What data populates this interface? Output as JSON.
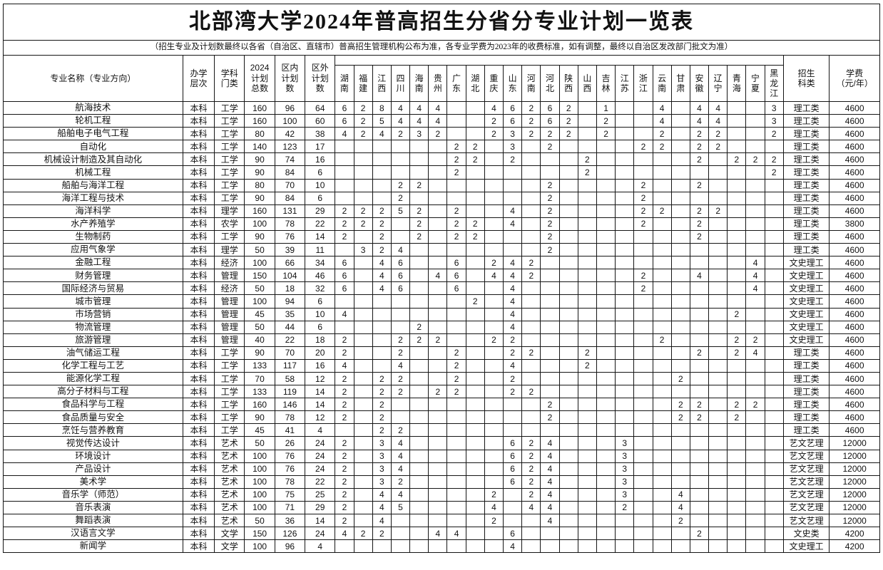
{
  "title": "北部湾大学2024年普高招生分省分专业计划一览表",
  "note": "（招生专业及计划数最终以各省（自治区、直辖市）普高招生管理机构公布为准，各专业学费为2023年的收费标准，如有调整，最终以自治区发改部门批文为准）",
  "columns": {
    "major": "专业名称（专业方向）",
    "level": "办学\n层次",
    "discipline": "学科\n门类",
    "total": "2024\n计划\n总数",
    "inside": "区内\n计划\n数",
    "outside": "区外\n计划\n数",
    "category": "招生\n科类",
    "fee": "学费\n（元/年）"
  },
  "provinces": [
    "湖南",
    "福建",
    "江西",
    "四川",
    "海南",
    "贵州",
    "广东",
    "湖北",
    "重庆",
    "山东",
    "河南",
    "河北",
    "陕西",
    "山西",
    "吉林",
    "江苏",
    "浙江",
    "云南",
    "甘肃",
    "安徽",
    "辽宁",
    "青海",
    "宁夏",
    "黑龙江"
  ],
  "rows": [
    {
      "name": "航海技术",
      "level": "本科",
      "discipline": "工学",
      "total": 160,
      "inside": 96,
      "outside": 64,
      "prov": [
        6,
        2,
        8,
        4,
        4,
        4,
        "",
        "",
        4,
        6,
        2,
        6,
        2,
        "",
        1,
        "",
        "",
        4,
        "",
        4,
        4,
        "",
        "",
        3
      ],
      "category": "理工类",
      "fee": 4600
    },
    {
      "name": "轮机工程",
      "level": "本科",
      "discipline": "工学",
      "total": 160,
      "inside": 100,
      "outside": 60,
      "prov": [
        6,
        2,
        5,
        4,
        4,
        4,
        "",
        "",
        2,
        6,
        2,
        6,
        2,
        "",
        2,
        "",
        "",
        4,
        "",
        4,
        4,
        "",
        "",
        3
      ],
      "category": "理工类",
      "fee": 4600
    },
    {
      "name": "船舶电子电气工程",
      "level": "本科",
      "discipline": "工学",
      "total": 80,
      "inside": 42,
      "outside": 38,
      "prov": [
        4,
        2,
        4,
        2,
        3,
        2,
        "",
        "",
        2,
        3,
        2,
        2,
        2,
        "",
        2,
        "",
        "",
        2,
        "",
        2,
        2,
        "",
        "",
        2
      ],
      "category": "理工类",
      "fee": 4600
    },
    {
      "name": "自动化",
      "level": "本科",
      "discipline": "工学",
      "total": 140,
      "inside": 123,
      "outside": 17,
      "prov": [
        "",
        "",
        "",
        "",
        "",
        "",
        2,
        2,
        "",
        3,
        "",
        2,
        "",
        "",
        "",
        "",
        2,
        2,
        "",
        2,
        2,
        "",
        "",
        ""
      ],
      "category": "理工类",
      "fee": 4600
    },
    {
      "name": "机械设计制造及其自动化",
      "level": "本科",
      "discipline": "工学",
      "total": 90,
      "inside": 74,
      "outside": 16,
      "prov": [
        "",
        "",
        "",
        "",
        "",
        "",
        2,
        2,
        "",
        2,
        "",
        "",
        "",
        2,
        "",
        "",
        "",
        "",
        "",
        2,
        "",
        2,
        2,
        2
      ],
      "category": "理工类",
      "fee": 4600
    },
    {
      "name": "机械工程",
      "level": "本科",
      "discipline": "工学",
      "total": 90,
      "inside": 84,
      "outside": 6,
      "prov": [
        "",
        "",
        "",
        "",
        "",
        "",
        2,
        "",
        "",
        "",
        "",
        "",
        "",
        2,
        "",
        "",
        "",
        "",
        "",
        "",
        "",
        "",
        "",
        2
      ],
      "category": "理工类",
      "fee": 4600
    },
    {
      "name": "船舶与海洋工程",
      "level": "本科",
      "discipline": "工学",
      "total": 80,
      "inside": 70,
      "outside": 10,
      "prov": [
        "",
        "",
        "",
        2,
        2,
        "",
        "",
        "",
        "",
        "",
        "",
        2,
        "",
        "",
        "",
        "",
        2,
        "",
        "",
        2,
        "",
        "",
        "",
        ""
      ],
      "category": "理工类",
      "fee": 4600
    },
    {
      "name": "海洋工程与技术",
      "level": "本科",
      "discipline": "工学",
      "total": 90,
      "inside": 84,
      "outside": 6,
      "prov": [
        "",
        "",
        "",
        2,
        "",
        "",
        "",
        "",
        "",
        "",
        "",
        2,
        "",
        "",
        "",
        "",
        2,
        "",
        "",
        "",
        "",
        "",
        "",
        ""
      ],
      "category": "理工类",
      "fee": 4600
    },
    {
      "name": "海洋科学",
      "level": "本科",
      "discipline": "理学",
      "total": 160,
      "inside": 131,
      "outside": 29,
      "prov": [
        2,
        2,
        2,
        5,
        2,
        "",
        2,
        "",
        "",
        4,
        "",
        2,
        "",
        "",
        "",
        "",
        2,
        2,
        "",
        2,
        2,
        "",
        "",
        ""
      ],
      "category": "理工类",
      "fee": 4600
    },
    {
      "name": "水产养殖学",
      "level": "本科",
      "discipline": "农学",
      "total": 100,
      "inside": 78,
      "outside": 22,
      "prov": [
        2,
        2,
        2,
        "",
        2,
        "",
        2,
        2,
        "",
        4,
        "",
        2,
        "",
        "",
        "",
        "",
        2,
        "",
        "",
        2,
        "",
        "",
        "",
        ""
      ],
      "category": "理工类",
      "fee": 3800
    },
    {
      "name": "生物制药",
      "level": "本科",
      "discipline": "工学",
      "total": 90,
      "inside": 76,
      "outside": 14,
      "prov": [
        2,
        "",
        2,
        "",
        2,
        "",
        2,
        2,
        "",
        "",
        "",
        2,
        "",
        "",
        "",
        "",
        "",
        "",
        "",
        2,
        "",
        "",
        "",
        ""
      ],
      "category": "理工类",
      "fee": 4600
    },
    {
      "name": "应用气象学",
      "level": "本科",
      "discipline": "理学",
      "total": 50,
      "inside": 39,
      "outside": 11,
      "prov": [
        "",
        3,
        2,
        4,
        "",
        "",
        "",
        "",
        "",
        "",
        "",
        2,
        "",
        "",
        "",
        "",
        "",
        "",
        "",
        "",
        "",
        "",
        "",
        ""
      ],
      "category": "理工类",
      "fee": 4600
    },
    {
      "name": "金融工程",
      "level": "本科",
      "discipline": "经济",
      "total": 100,
      "inside": 66,
      "outside": 34,
      "prov": [
        6,
        "",
        4,
        6,
        "",
        "",
        6,
        "",
        2,
        4,
        2,
        "",
        "",
        "",
        "",
        "",
        "",
        "",
        "",
        "",
        "",
        "",
        4,
        ""
      ],
      "category": "文史理工",
      "fee": 4600
    },
    {
      "name": "财务管理",
      "level": "本科",
      "discipline": "管理",
      "total": 150,
      "inside": 104,
      "outside": 46,
      "prov": [
        6,
        "",
        4,
        6,
        "",
        4,
        6,
        "",
        4,
        4,
        2,
        "",
        "",
        "",
        "",
        "",
        2,
        "",
        "",
        4,
        "",
        "",
        4,
        ""
      ],
      "category": "文史理工",
      "fee": 4600
    },
    {
      "name": "国际经济与贸易",
      "level": "本科",
      "discipline": "经济",
      "total": 50,
      "inside": 18,
      "outside": 32,
      "prov": [
        6,
        "",
        4,
        6,
        "",
        "",
        6,
        "",
        "",
        4,
        "",
        "",
        "",
        "",
        "",
        "",
        2,
        "",
        "",
        "",
        "",
        "",
        4,
        ""
      ],
      "category": "文史理工",
      "fee": 4600
    },
    {
      "name": "城市管理",
      "level": "本科",
      "discipline": "管理",
      "total": 100,
      "inside": 94,
      "outside": 6,
      "prov": [
        "",
        "",
        "",
        "",
        "",
        "",
        "",
        2,
        "",
        4,
        "",
        "",
        "",
        "",
        "",
        "",
        "",
        "",
        "",
        "",
        "",
        "",
        "",
        ""
      ],
      "category": "文史理工",
      "fee": 4600
    },
    {
      "name": "市场营销",
      "level": "本科",
      "discipline": "管理",
      "total": 45,
      "inside": 35,
      "outside": 10,
      "prov": [
        4,
        "",
        "",
        "",
        "",
        "",
        "",
        "",
        "",
        4,
        "",
        "",
        "",
        "",
        "",
        "",
        "",
        "",
        "",
        "",
        "",
        2,
        "",
        ""
      ],
      "category": "文史理工",
      "fee": 4600
    },
    {
      "name": "物流管理",
      "level": "本科",
      "discipline": "管理",
      "total": 50,
      "inside": 44,
      "outside": 6,
      "prov": [
        "",
        "",
        "",
        "",
        2,
        "",
        "",
        "",
        "",
        4,
        "",
        "",
        "",
        "",
        "",
        "",
        "",
        "",
        "",
        "",
        "",
        "",
        "",
        ""
      ],
      "category": "文史理工",
      "fee": 4600
    },
    {
      "name": "旅游管理",
      "level": "本科",
      "discipline": "管理",
      "total": 40,
      "inside": 22,
      "outside": 18,
      "prov": [
        2,
        "",
        "",
        2,
        2,
        2,
        "",
        "",
        2,
        2,
        "",
        "",
        "",
        "",
        "",
        "",
        "",
        2,
        "",
        "",
        "",
        2,
        2,
        ""
      ],
      "category": "文史理工",
      "fee": 4600
    },
    {
      "name": "油气储运工程",
      "level": "本科",
      "discipline": "工学",
      "total": 90,
      "inside": 70,
      "outside": 20,
      "prov": [
        2,
        "",
        "",
        2,
        "",
        "",
        2,
        "",
        "",
        2,
        2,
        "",
        "",
        2,
        "",
        "",
        "",
        "",
        "",
        2,
        "",
        2,
        4,
        ""
      ],
      "category": "理工类",
      "fee": 4600
    },
    {
      "name": "化学工程与工艺",
      "level": "本科",
      "discipline": "工学",
      "total": 133,
      "inside": 117,
      "outside": 16,
      "prov": [
        4,
        "",
        "",
        4,
        "",
        "",
        2,
        "",
        "",
        4,
        "",
        "",
        "",
        2,
        "",
        "",
        "",
        "",
        "",
        "",
        "",
        "",
        "",
        ""
      ],
      "category": "理工类",
      "fee": 4600
    },
    {
      "name": "能源化学工程",
      "level": "本科",
      "discipline": "工学",
      "total": 70,
      "inside": 58,
      "outside": 12,
      "prov": [
        2,
        "",
        2,
        2,
        "",
        "",
        2,
        "",
        "",
        2,
        "",
        "",
        "",
        "",
        "",
        "",
        "",
        "",
        2,
        "",
        "",
        "",
        "",
        ""
      ],
      "category": "理工类",
      "fee": 4600
    },
    {
      "name": "高分子材料与工程",
      "level": "本科",
      "discipline": "工学",
      "total": 133,
      "inside": 119,
      "outside": 14,
      "prov": [
        2,
        "",
        2,
        2,
        "",
        2,
        2,
        "",
        "",
        2,
        2,
        "",
        "",
        "",
        "",
        "",
        "",
        "",
        "",
        "",
        "",
        "",
        "",
        ""
      ],
      "category": "理工类",
      "fee": 4600
    },
    {
      "name": "食品科学与工程",
      "level": "本科",
      "discipline": "工学",
      "total": 160,
      "inside": 146,
      "outside": 14,
      "prov": [
        2,
        "",
        2,
        "",
        "",
        "",
        "",
        "",
        "",
        "",
        "",
        2,
        "",
        "",
        "",
        "",
        "",
        "",
        2,
        2,
        "",
        2,
        2,
        ""
      ],
      "category": "理工类",
      "fee": 4600
    },
    {
      "name": "食品质量与安全",
      "level": "本科",
      "discipline": "工学",
      "total": 90,
      "inside": 78,
      "outside": 12,
      "prov": [
        2,
        "",
        2,
        "",
        "",
        "",
        "",
        "",
        "",
        "",
        "",
        2,
        "",
        "",
        "",
        "",
        "",
        "",
        2,
        2,
        "",
        2,
        "",
        ""
      ],
      "category": "理工类",
      "fee": 4600
    },
    {
      "name": "烹饪与营养教育",
      "level": "本科",
      "discipline": "工学",
      "total": 45,
      "inside": 41,
      "outside": 4,
      "prov": [
        "",
        "",
        2,
        2,
        "",
        "",
        "",
        "",
        "",
        "",
        "",
        "",
        "",
        "",
        "",
        "",
        "",
        "",
        "",
        "",
        "",
        "",
        "",
        ""
      ],
      "category": "理工类",
      "fee": 4600
    },
    {
      "name": "视觉传达设计",
      "level": "本科",
      "discipline": "艺术",
      "total": 50,
      "inside": 26,
      "outside": 24,
      "prov": [
        2,
        "",
        3,
        4,
        "",
        "",
        "",
        "",
        "",
        6,
        2,
        4,
        "",
        "",
        "",
        3,
        "",
        "",
        "",
        "",
        "",
        "",
        "",
        ""
      ],
      "category": "艺文艺理",
      "fee": 12000
    },
    {
      "name": "环境设计",
      "level": "本科",
      "discipline": "艺术",
      "total": 100,
      "inside": 76,
      "outside": 24,
      "prov": [
        2,
        "",
        3,
        4,
        "",
        "",
        "",
        "",
        "",
        6,
        2,
        4,
        "",
        "",
        "",
        3,
        "",
        "",
        "",
        "",
        "",
        "",
        "",
        ""
      ],
      "category": "艺文艺理",
      "fee": 12000
    },
    {
      "name": "产品设计",
      "level": "本科",
      "discipline": "艺术",
      "total": 100,
      "inside": 76,
      "outside": 24,
      "prov": [
        2,
        "",
        3,
        4,
        "",
        "",
        "",
        "",
        "",
        6,
        2,
        4,
        "",
        "",
        "",
        3,
        "",
        "",
        "",
        "",
        "",
        "",
        "",
        ""
      ],
      "category": "艺文艺理",
      "fee": 12000
    },
    {
      "name": "美术学",
      "level": "本科",
      "discipline": "艺术",
      "total": 100,
      "inside": 78,
      "outside": 22,
      "prov": [
        2,
        "",
        3,
        2,
        "",
        "",
        "",
        "",
        "",
        6,
        2,
        4,
        "",
        "",
        "",
        3,
        "",
        "",
        "",
        "",
        "",
        "",
        "",
        ""
      ],
      "category": "艺文艺理",
      "fee": 12000
    },
    {
      "name": "音乐学（师范）",
      "level": "本科",
      "discipline": "艺术",
      "total": 100,
      "inside": 75,
      "outside": 25,
      "prov": [
        2,
        "",
        4,
        4,
        "",
        "",
        "",
        "",
        2,
        "",
        2,
        4,
        "",
        "",
        "",
        3,
        "",
        "",
        4,
        "",
        "",
        "",
        "",
        ""
      ],
      "category": "艺文艺理",
      "fee": 12000
    },
    {
      "name": "音乐表演",
      "level": "本科",
      "discipline": "艺术",
      "total": 100,
      "inside": 71,
      "outside": 29,
      "prov": [
        2,
        "",
        4,
        5,
        "",
        "",
        "",
        "",
        4,
        "",
        4,
        4,
        "",
        "",
        "",
        2,
        "",
        "",
        4,
        "",
        "",
        "",
        "",
        ""
      ],
      "category": "艺文艺理",
      "fee": 12000
    },
    {
      "name": "舞蹈表演",
      "level": "本科",
      "discipline": "艺术",
      "total": 50,
      "inside": 36,
      "outside": 14,
      "prov": [
        2,
        "",
        4,
        "",
        "",
        "",
        "",
        "",
        2,
        "",
        "",
        4,
        "",
        "",
        "",
        "",
        "",
        "",
        2,
        "",
        "",
        "",
        "",
        ""
      ],
      "category": "艺文艺理",
      "fee": 12000
    },
    {
      "name": "汉语言文学",
      "level": "本科",
      "discipline": "文学",
      "total": 150,
      "inside": 126,
      "outside": 24,
      "prov": [
        4,
        2,
        2,
        "",
        "",
        4,
        4,
        "",
        "",
        6,
        "",
        "",
        "",
        "",
        "",
        "",
        "",
        "",
        "",
        2,
        "",
        "",
        "",
        ""
      ],
      "category": "文史类",
      "fee": 4200
    },
    {
      "name": "新闻学",
      "level": "本科",
      "discipline": "文学",
      "total": 100,
      "inside": 96,
      "outside": 4,
      "prov": [
        "",
        "",
        "",
        "",
        "",
        "",
        "",
        "",
        "",
        4,
        "",
        "",
        "",
        "",
        "",
        "",
        "",
        "",
        "",
        "",
        "",
        "",
        "",
        ""
      ],
      "category": "文史理工",
      "fee": 4200
    }
  ]
}
